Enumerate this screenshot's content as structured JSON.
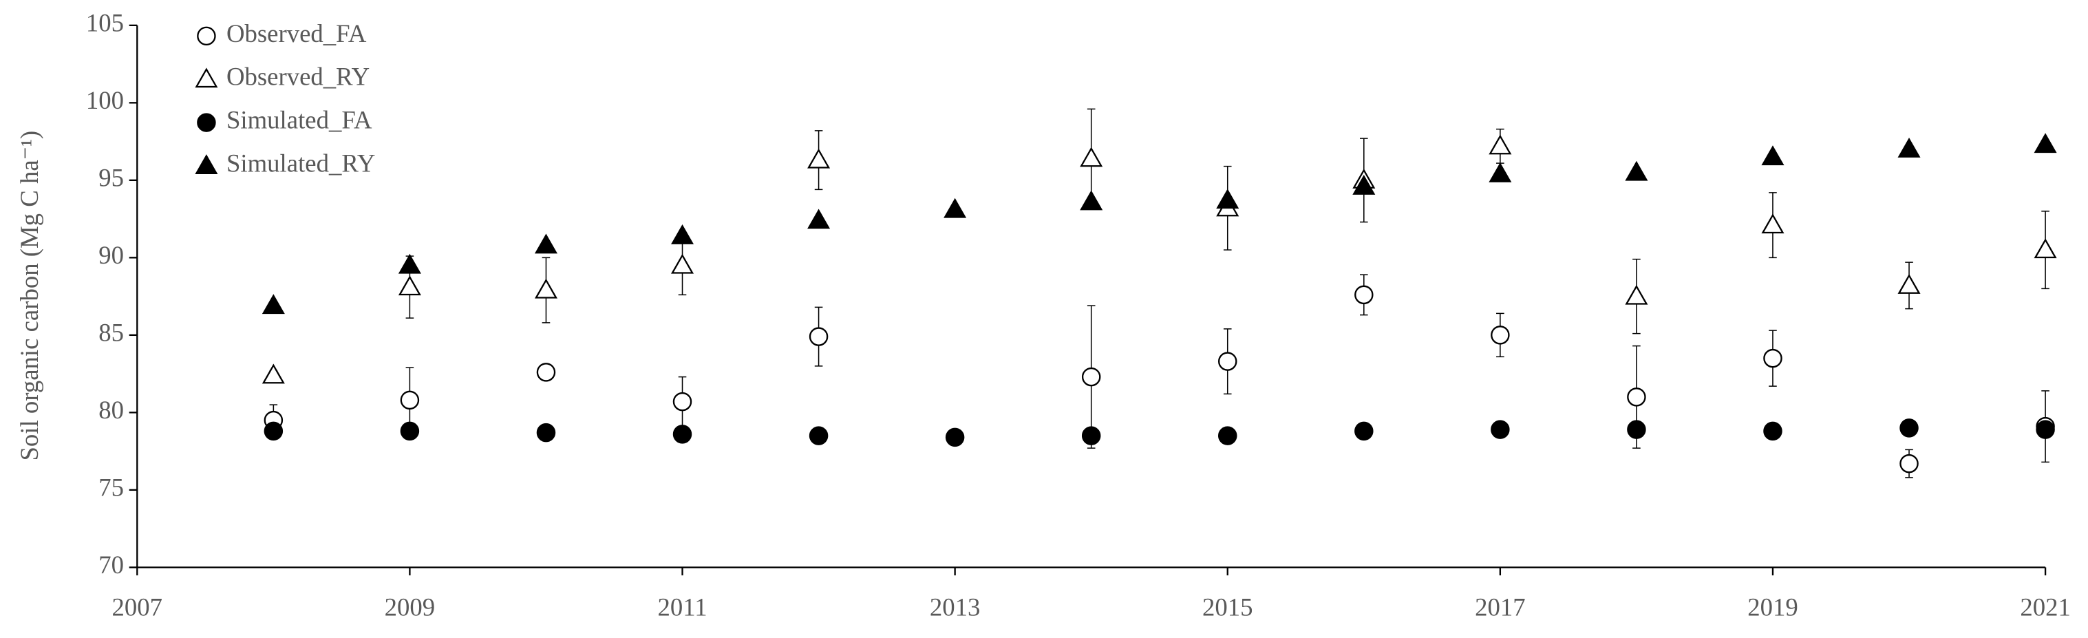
{
  "chart_data": {
    "type": "scatter",
    "y_label": "Soil organic carbon (Mg C ha⁻¹)",
    "x": [
      2008,
      2009,
      2010,
      2011,
      2012,
      2013,
      2014,
      2015,
      2016,
      2017,
      2018,
      2019,
      2020,
      2021
    ],
    "xlim": [
      2007,
      2021
    ],
    "xticks": [
      2007,
      2009,
      2011,
      2013,
      2015,
      2017,
      2019,
      2021
    ],
    "ylim": [
      70,
      105
    ],
    "yticks": [
      70,
      75,
      80,
      85,
      90,
      95,
      100,
      105
    ],
    "legend": "top-left",
    "series": [
      {
        "name": "Observed_FA",
        "color": "#000000",
        "marker": "circle-open",
        "values": [
          79.5,
          80.8,
          82.6,
          80.7,
          84.9,
          null,
          82.3,
          83.3,
          87.6,
          85.0,
          81.0,
          83.5,
          76.7,
          79.1
        ],
        "errors": [
          1.0,
          2.1,
          0.5,
          1.6,
          1.9,
          null,
          4.6,
          2.1,
          1.3,
          1.4,
          3.3,
          1.8,
          0.9,
          2.3
        ]
      },
      {
        "name": "Observed_RY",
        "color": "#000000",
        "marker": "triangle-open",
        "values": [
          82.4,
          88.1,
          87.9,
          89.5,
          96.3,
          null,
          96.4,
          93.2,
          95.0,
          97.2,
          87.5,
          92.1,
          88.2,
          90.5
        ],
        "errors": [
          0.3,
          2.0,
          2.1,
          1.9,
          1.9,
          null,
          3.2,
          2.7,
          2.7,
          1.1,
          2.4,
          2.1,
          1.5,
          2.5
        ]
      },
      {
        "name": "Simulated_FA",
        "color": "#000000",
        "marker": "circle-filled",
        "values": [
          78.8,
          78.8,
          78.7,
          78.6,
          78.5,
          78.4,
          78.5,
          78.5,
          78.8,
          78.9,
          78.9,
          78.8,
          79.0,
          78.9
        ]
      },
      {
        "name": "Simulated_RY",
        "color": "#000000",
        "marker": "triangle-filled",
        "values": [
          86.9,
          89.5,
          90.8,
          91.4,
          92.4,
          93.1,
          93.6,
          93.7,
          94.6,
          95.4,
          95.5,
          96.5,
          97.0,
          97.3
        ]
      }
    ]
  }
}
